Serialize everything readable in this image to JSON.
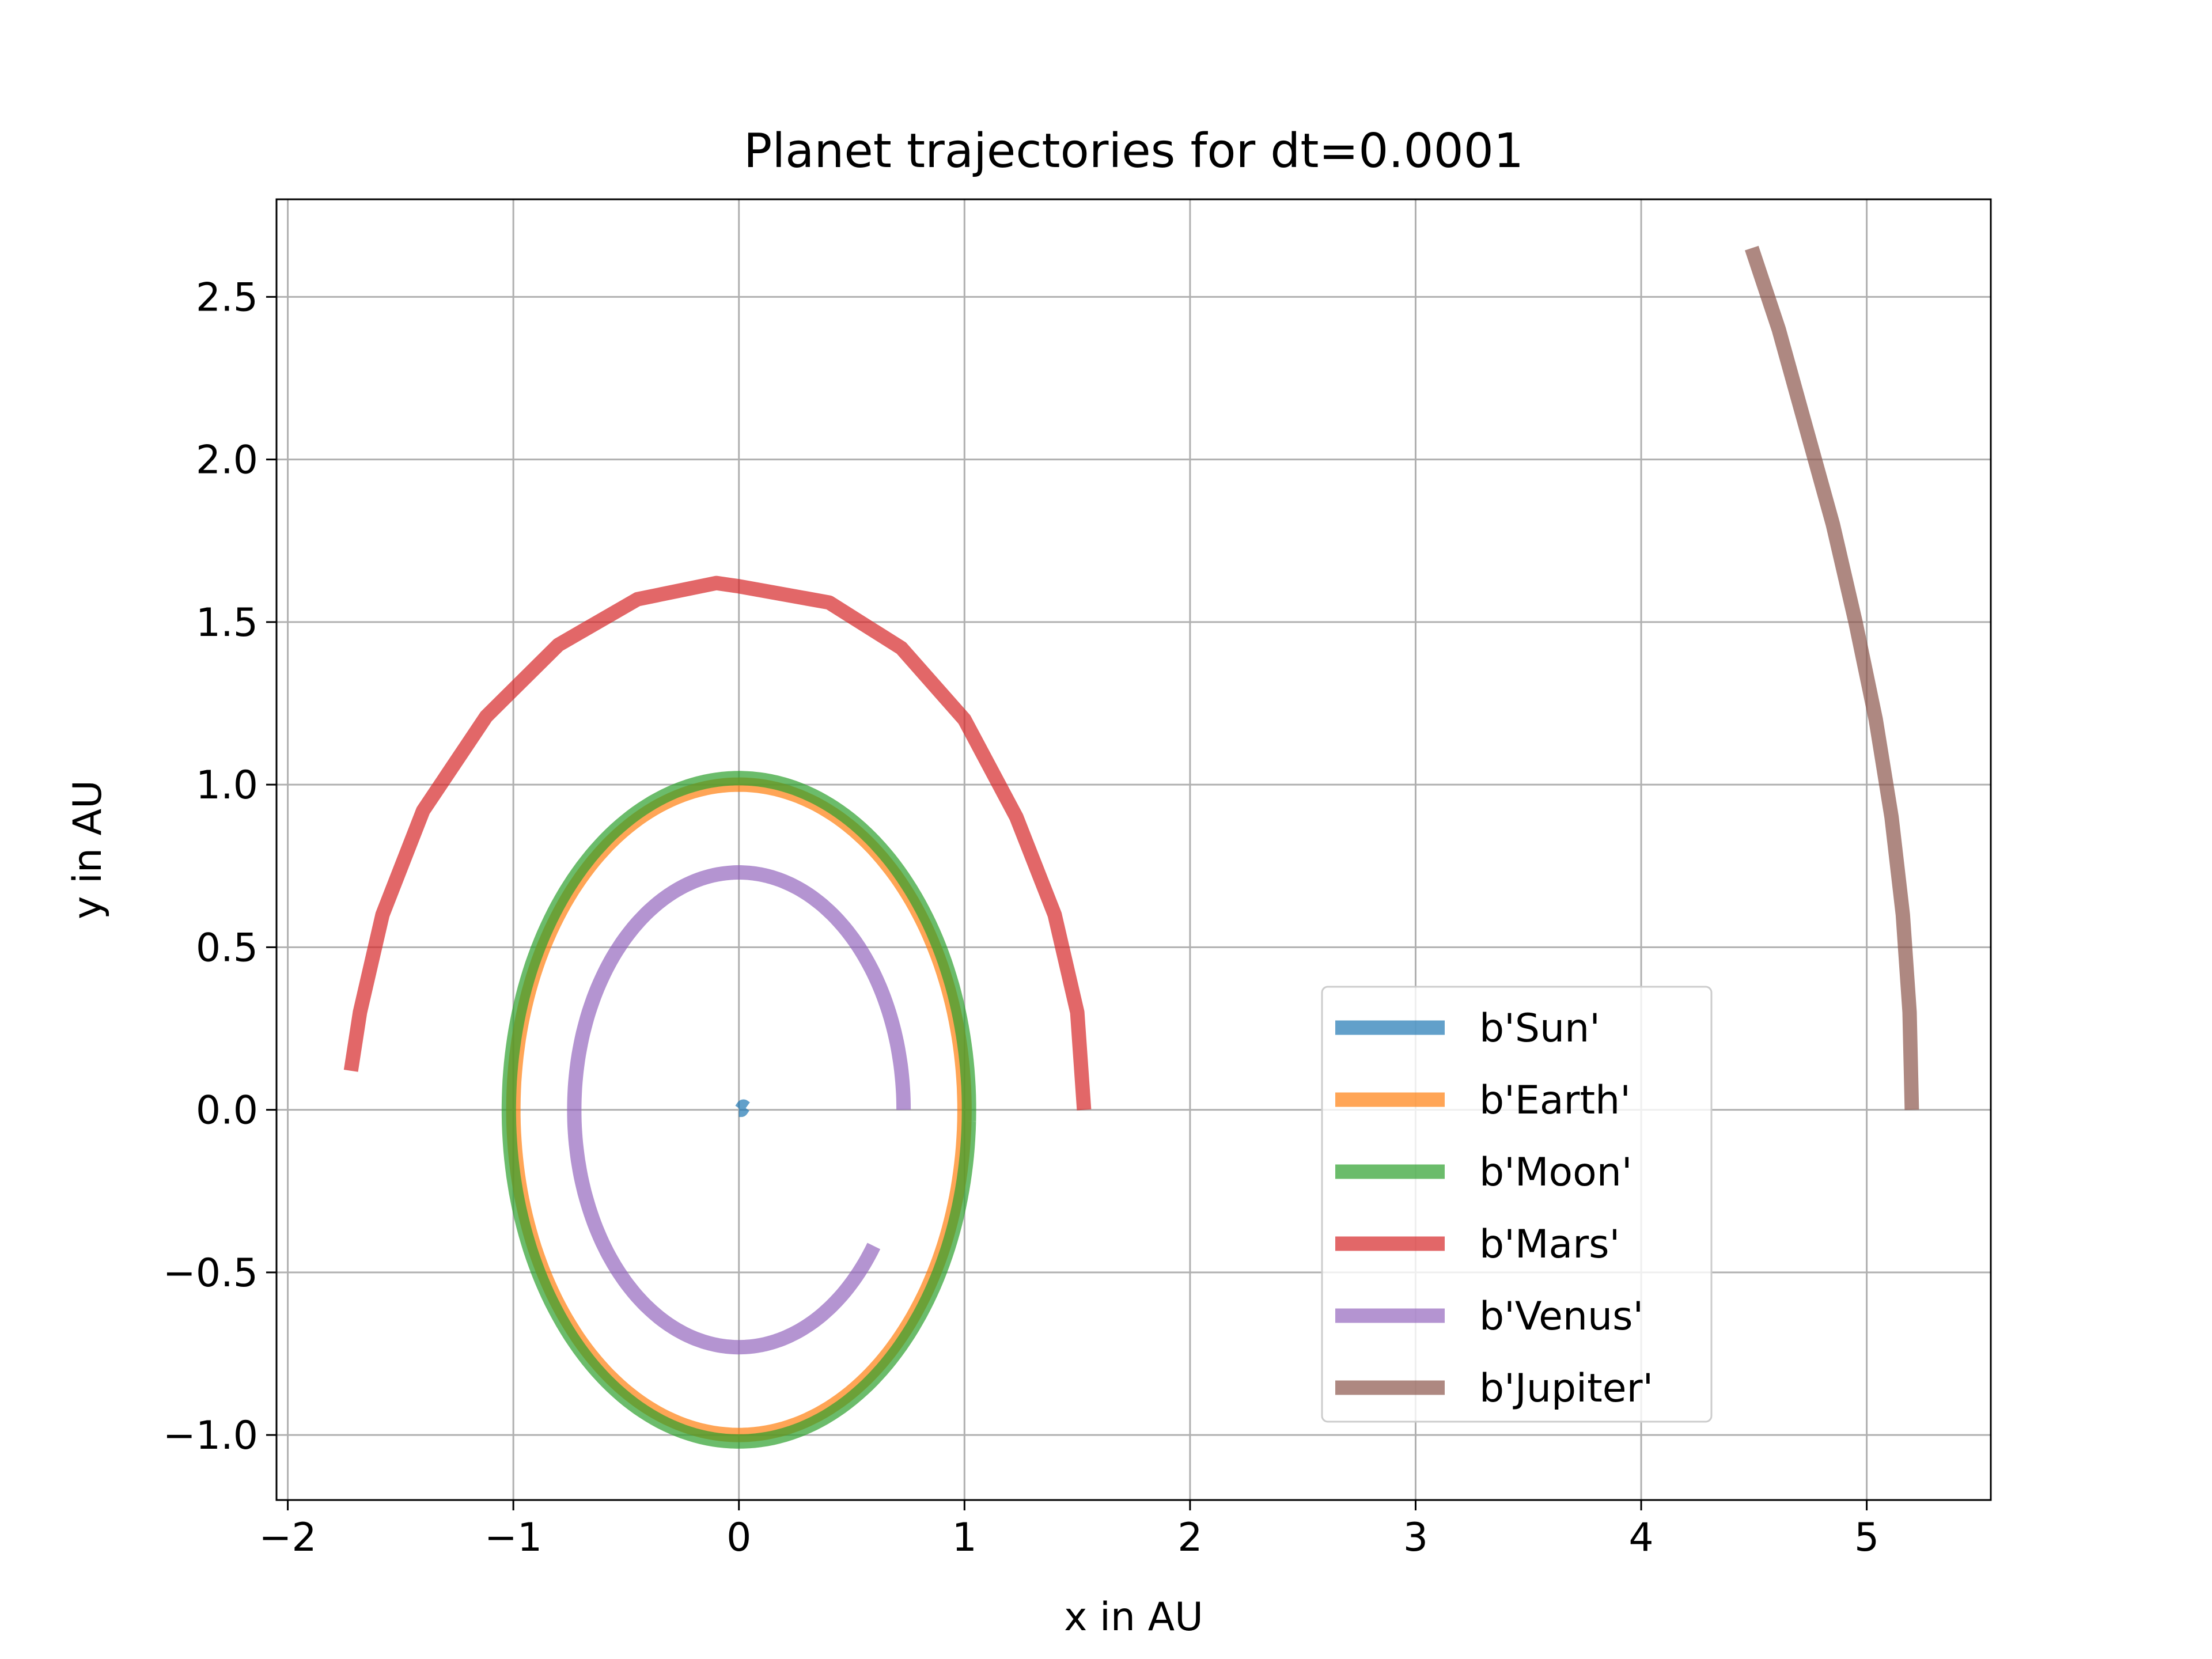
{
  "chart_data": {
    "type": "line",
    "title": "Planet trajectories for dt=0.0001",
    "xlabel": "x in AU",
    "ylabel": "y in AU",
    "xlim": [
      -2.05,
      5.55
    ],
    "ylim": [
      -1.2,
      2.8
    ],
    "xticks": [
      -2,
      -1,
      0,
      1,
      2,
      3,
      4,
      5
    ],
    "yticks": [
      -1.0,
      -0.5,
      0.0,
      0.5,
      1.0,
      1.5,
      2.0,
      2.5
    ],
    "xtick_labels": [
      "−2",
      "−1",
      "0",
      "1",
      "2",
      "3",
      "4",
      "5"
    ],
    "ytick_labels": [
      "−1.0",
      "−0.5",
      "0.0",
      "0.5",
      "1.0",
      "1.5",
      "2.0",
      "2.5"
    ],
    "grid": true,
    "legend_position": "lower-right",
    "series": [
      {
        "name": "b'Sun'",
        "color": "#1f77b4",
        "points": [
          [
            0.0,
            0.0
          ],
          [
            0.01,
            0.0
          ],
          [
            0.02,
            0.01
          ],
          [
            0.03,
            0.005
          ]
        ]
      },
      {
        "name": "b'Earth'",
        "color": "#ff7f0e",
        "orbit": {
          "cx": 0.0,
          "cy": 0.0,
          "rx": 1.0,
          "ry": 1.0,
          "start_deg": -2,
          "end_deg": 358
        }
      },
      {
        "name": "b'Moon'",
        "color": "#2ca02c",
        "orbit": {
          "cx": 0.0,
          "cy": 0.0,
          "rx": 1.02,
          "ry": 1.02,
          "start_deg": -2,
          "end_deg": 358
        }
      },
      {
        "name": "b'Mars'",
        "color": "#d62728",
        "points": [
          [
            1.53,
            0.0
          ],
          [
            1.5,
            0.3
          ],
          [
            1.4,
            0.6
          ],
          [
            1.23,
            0.9
          ],
          [
            1.0,
            1.2
          ],
          [
            0.72,
            1.42
          ],
          [
            0.4,
            1.56
          ],
          [
            0.0,
            1.61
          ],
          [
            -0.1,
            1.62
          ],
          [
            -0.45,
            1.57
          ],
          [
            -0.8,
            1.43
          ],
          [
            -1.12,
            1.21
          ],
          [
            -1.4,
            0.92
          ],
          [
            -1.58,
            0.6
          ],
          [
            -1.68,
            0.3
          ],
          [
            -1.72,
            0.12
          ]
        ]
      },
      {
        "name": "b'Venus'",
        "color": "#9467bd",
        "orbit": {
          "cx": 0.0,
          "cy": 0.0,
          "rx": 0.73,
          "ry": 0.73,
          "start_deg": 0,
          "end_deg": 325
        }
      },
      {
        "name": "b'Jupiter'",
        "color": "#8c564b",
        "points": [
          [
            5.2,
            0.0
          ],
          [
            5.19,
            0.3
          ],
          [
            5.16,
            0.6
          ],
          [
            5.11,
            0.9
          ],
          [
            5.04,
            1.2
          ],
          [
            4.95,
            1.5
          ],
          [
            4.85,
            1.8
          ],
          [
            4.73,
            2.1
          ],
          [
            4.61,
            2.4
          ],
          [
            4.49,
            2.65
          ]
        ]
      }
    ]
  }
}
